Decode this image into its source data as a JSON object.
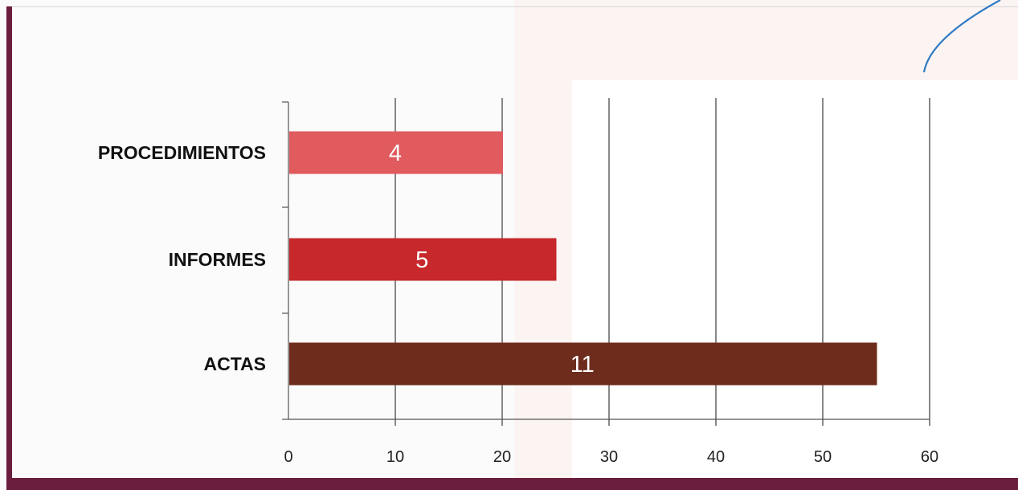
{
  "chart_data": {
    "type": "bar",
    "orientation": "horizontal",
    "categories": [
      "PROCEDIMIENTOS",
      "INFORMES",
      "ACTAS"
    ],
    "values": [
      20,
      25,
      55
    ],
    "data_labels": [
      "4",
      "5",
      "11"
    ],
    "colors": [
      "#e05a5e",
      "#c7282b",
      "#6e2c1c"
    ],
    "xlim": [
      0,
      60
    ],
    "xticks": [
      0,
      10,
      20,
      30,
      40,
      50,
      60
    ],
    "tick_labels": [
      "0",
      "10",
      "20",
      "30",
      "40",
      "50",
      "60"
    ],
    "grid": true,
    "legend": "none"
  },
  "colors": {
    "frame": "#6b1e3e",
    "annotation_stroke": "#2f7bc4"
  }
}
